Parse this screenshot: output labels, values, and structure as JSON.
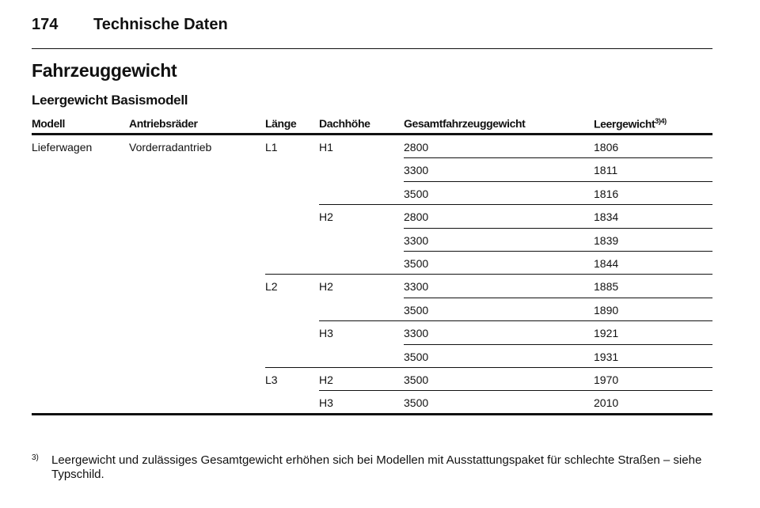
{
  "header": {
    "page_number": "174",
    "section": "Technische Daten"
  },
  "title": "Fahrzeuggewicht",
  "subtitle": "Leergewicht Basismodell",
  "table": {
    "columns": [
      "Modell",
      "Antriebsräder",
      "Länge",
      "Dachhöhe",
      "Gesamtfahrzeuggewicht",
      "Leergewicht"
    ],
    "last_column_note": "3)4)",
    "model": "Lieferwagen",
    "drive": "Vorderradantrieb",
    "lengths": [
      {
        "label": "L1",
        "heights": [
          {
            "label": "H1",
            "rows": [
              [
                2800,
                1806
              ],
              [
                3300,
                1811
              ],
              [
                3500,
                1816
              ]
            ]
          },
          {
            "label": "H2",
            "rows": [
              [
                2800,
                1834
              ],
              [
                3300,
                1839
              ],
              [
                3500,
                1844
              ]
            ]
          }
        ]
      },
      {
        "label": "L2",
        "heights": [
          {
            "label": "H2",
            "rows": [
              [
                3300,
                1885
              ],
              [
                3500,
                1890
              ]
            ]
          },
          {
            "label": "H3",
            "rows": [
              [
                3300,
                1921
              ],
              [
                3500,
                1931
              ]
            ]
          }
        ]
      },
      {
        "label": "L3",
        "heights": [
          {
            "label": "H2",
            "rows": [
              [
                3500,
                1970
              ]
            ]
          },
          {
            "label": "H3",
            "rows": [
              [
                3500,
                2010
              ]
            ]
          }
        ]
      }
    ]
  },
  "footnote": {
    "marker": "3)",
    "text": "Leergewicht und zulässiges Gesamtgewicht erhöhen sich bei Modellen mit Ausstattungspaket für schlechte Straßen – siehe Typschild."
  }
}
